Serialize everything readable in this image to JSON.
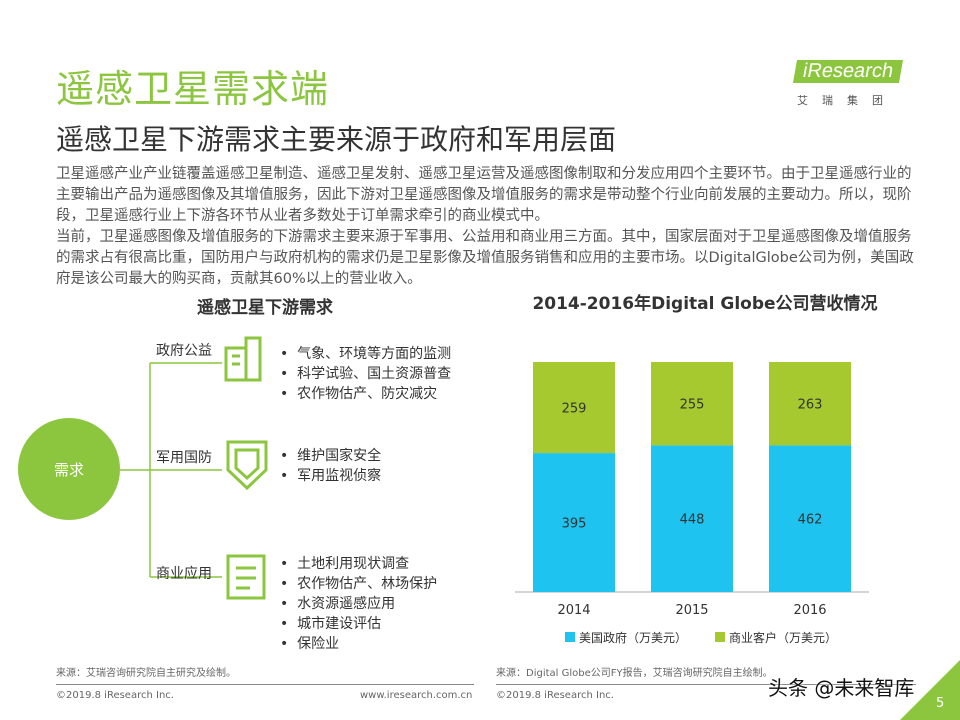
{
  "header": {
    "title": "遥感卫星需求端",
    "subtitle": "遥感卫星下游需求主要来源于政府和军用层面",
    "logo_text": "iResearch",
    "logo_sub": "艾瑞集团"
  },
  "body": {
    "p1": "卫星遥感产业产业链覆盖遥感卫星制造、遥感卫星发射、遥感卫星运营及遥感图像制取和分发应用四个主要环节。由于卫星遥感行业的主要输出产品为遥感图像及其增值服务，因此下游对卫星遥感图像及增值服务的需求是带动整个行业向前发展的主要动力。所以，现阶段，卫星遥感行业上下游各环节从业者多数处于订单需求牵引的商业模式中。",
    "p2": "当前，卫星遥感图像及增值服务的下游需求主要来源于军事用、公益用和商业用三方面。其中，国家层面对于卫星遥感图像及增值服务的需求占有很高比重，国防用户与政府机构的需求仍是卫星影像及增值服务销售和应用的主要市场。以DigitalGlobe公司为例，美国政府是该公司最大的购买商，贡献其60%以上的营业收入。"
  },
  "diagram": {
    "title": "遥感卫星下游需求",
    "root": "需求",
    "branches": [
      {
        "label": "政府公益",
        "icon": "building-icon",
        "items": [
          "气象、环境等方面的监测",
          "科学试验、国土资源普查",
          "农作物估产、防灾减灾"
        ]
      },
      {
        "label": "军用国防",
        "icon": "shield-icon",
        "items": [
          "维护国家安全",
          "军用监视侦察"
        ]
      },
      {
        "label": "商业应用",
        "icon": "document-icon",
        "items": [
          "土地利用现状调查",
          "农作物估产、林场保护",
          "水资源遥感应用",
          "城市建设评估",
          "保险业"
        ]
      }
    ]
  },
  "chart_data": {
    "type": "bar",
    "stacked": "percent",
    "title": "2014-2016年Digital Globe公司营收情况",
    "categories": [
      "2014",
      "2015",
      "2016"
    ],
    "series": [
      {
        "name": "美国政府（万美元）",
        "values": [
          395,
          448,
          462
        ],
        "color": "#1ec3ef"
      },
      {
        "name": "商业客户（万美元）",
        "values": [
          259,
          255,
          263
        ],
        "color": "#a5c92f"
      }
    ],
    "legend": "bottom",
    "grid": false
  },
  "footer": {
    "source_left": "来源：艾瑞咨询研究院自主研究及绘制。",
    "source_right": "来源：Digital Globe公司FY报告，艾瑞咨询研究院自主绘制。",
    "copyright": "©2019.8 iResearch Inc.",
    "url": "www.iresearch.com.cn",
    "copyright2": "©2019.8 iResearch Inc.",
    "watermark": "头条 @未来智库",
    "page": "5"
  }
}
